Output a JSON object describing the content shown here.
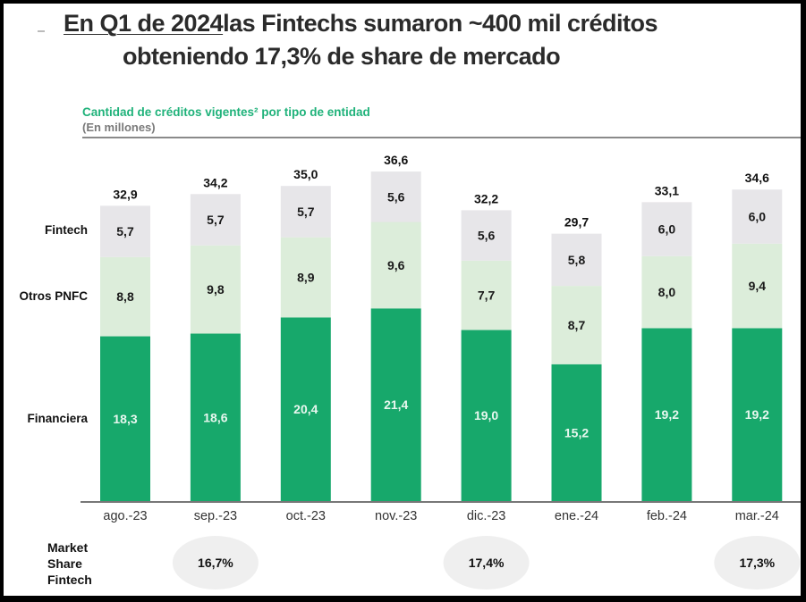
{
  "header": {
    "title_line1_prefix": "En Q1 de 2024",
    "title_line1_rest": " las Fintechs sumaron ~400 mil créditos",
    "title_line2": "obteniendo 17,3% de share de mercado",
    "subtitle": "Cantidad de créditos vigentes² por tipo de entidad",
    "units": "(En millones)"
  },
  "market_share": {
    "label_lines": [
      "Market",
      "Share",
      "Fintech"
    ],
    "items": [
      {
        "category": "sep.-23",
        "value": "16,7%"
      },
      {
        "category": "dic.-23",
        "value": "17,4%"
      },
      {
        "category": "mar.-24",
        "value": "17,3%"
      }
    ]
  },
  "colors": {
    "Financiera": "#17a86b",
    "Otros PNFC": "#dcedda",
    "Fintech": "#e7e6e9",
    "ellipse": "#efefef"
  },
  "chart_data": {
    "type": "bar",
    "stacked": true,
    "title": "Cantidad de créditos vigentes² por tipo de entidad",
    "subtitle": "(En millones)",
    "xlabel": "",
    "ylabel": "",
    "ylim": [
      0,
      40
    ],
    "grid": false,
    "legend": "left (row labels)",
    "categories": [
      "ago.-23",
      "sep.-23",
      "oct.-23",
      "nov.-23",
      "dic.-23",
      "ene.-24",
      "feb.-24",
      "mar.-24"
    ],
    "series": [
      {
        "name": "Financiera",
        "values": [
          18.3,
          18.6,
          20.4,
          21.4,
          19.0,
          15.2,
          19.2,
          19.2
        ],
        "labels": [
          "18,3",
          "18,6",
          "20,4",
          "21,4",
          "19,0",
          "15,2",
          "19,2",
          "19,2"
        ]
      },
      {
        "name": "Otros PNFC",
        "values": [
          8.8,
          9.8,
          8.9,
          9.6,
          7.7,
          8.7,
          8.0,
          9.4
        ],
        "labels": [
          "8,8",
          "9,8",
          "8,9",
          "9,6",
          "7,7",
          "8,7",
          "8,0",
          "9,4"
        ]
      },
      {
        "name": "Fintech",
        "values": [
          5.7,
          5.7,
          5.7,
          5.6,
          5.6,
          5.8,
          6.0,
          6.0
        ],
        "labels": [
          "5,7",
          "5,7",
          "5,7",
          "5,6",
          "5,6",
          "5,8",
          "6,0",
          "6,0"
        ]
      }
    ],
    "totals": [
      32.9,
      34.2,
      35.0,
      36.6,
      32.2,
      29.7,
      33.1,
      34.6
    ],
    "total_labels": [
      "32,9",
      "34,2",
      "35,0",
      "36,6",
      "32,2",
      "29,7",
      "33,1",
      "34,6"
    ],
    "series_row_labels": [
      "Fintech",
      "Otros PNFC",
      "Financiera"
    ]
  }
}
